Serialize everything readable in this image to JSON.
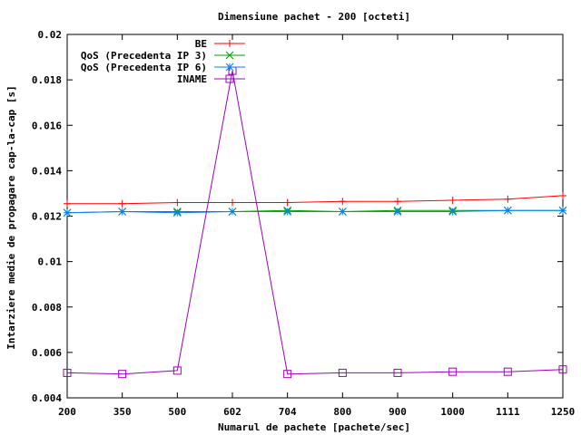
{
  "chart_data": {
    "type": "line",
    "title": "Dimensiune pachet - 200 [octeti]",
    "xlabel": "Numarul de pachete [pachete/sec]",
    "ylabel": "Intarziere medie de propagare cap-la-cap [s]",
    "categories": [
      "200",
      "350",
      "500",
      "602",
      "704",
      "800",
      "900",
      "1000",
      "1111",
      "1250"
    ],
    "y_ticks": [
      "0.004",
      "0.006",
      "0.008",
      "0.01",
      "0.012",
      "0.014",
      "0.016",
      "0.018",
      "0.02"
    ],
    "ylim": [
      0.004,
      0.02
    ],
    "grid": false,
    "legend_position": "top-right",
    "series": [
      {
        "name": "BE",
        "color": "#ff0000",
        "marker": "plus",
        "values": [
          0.01255,
          0.01255,
          0.0126,
          0.0126,
          0.0126,
          0.01265,
          0.01265,
          0.0127,
          0.01275,
          0.0129
        ]
      },
      {
        "name": "QoS (Precedenta IP 3)",
        "color": "#00a000",
        "marker": "cross",
        "values": [
          0.01215,
          0.0122,
          0.0122,
          0.0122,
          0.01225,
          0.0122,
          0.01225,
          0.01225,
          0.01225,
          0.01225
        ]
      },
      {
        "name": "QoS (Precedenta IP 6)",
        "color": "#0080ff",
        "marker": "star",
        "values": [
          0.01215,
          0.0122,
          0.01215,
          0.0122,
          0.0122,
          0.0122,
          0.0122,
          0.0122,
          0.01225,
          0.01225
        ]
      },
      {
        "name": "INAME",
        "color": "#a000c0",
        "marker": "square",
        "values": [
          0.0051,
          0.00505,
          0.0052,
          0.0184,
          0.00505,
          0.0051,
          0.0051,
          0.00515,
          0.00515,
          0.00525
        ]
      }
    ]
  }
}
